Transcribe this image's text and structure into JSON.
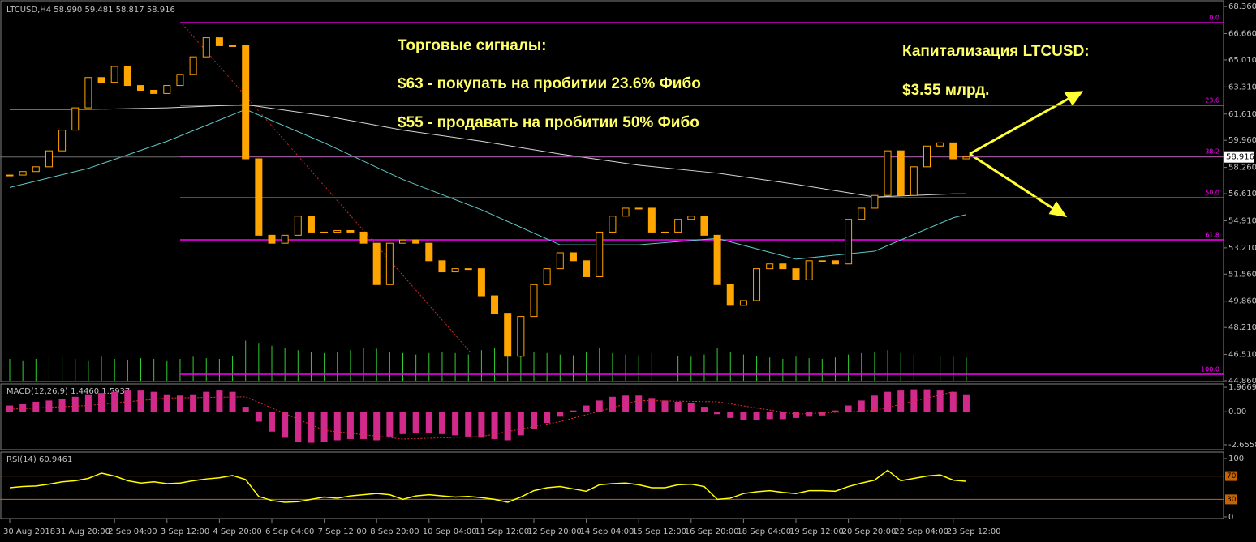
{
  "chart_data": {
    "type": "candlestick",
    "title": "LTCUSD,H4  58.990 59.481 58.817 58.916",
    "categories": [
      "30 Aug 2018",
      null,
      null,
      null,
      "31 Aug 20:00",
      null,
      null,
      null,
      "2 Sep 04:00",
      null,
      null,
      null,
      "3 Sep 12:00",
      null,
      null,
      null,
      "4 Sep 20:00",
      null,
      null,
      null,
      "6 Sep 04:00",
      null,
      null,
      null,
      "7 Sep 12:00",
      null,
      null,
      null,
      "8 Sep 20:00",
      null,
      null,
      null,
      "10 Sep 04:00",
      null,
      null,
      null,
      "11 Sep 12:00",
      null,
      null,
      null,
      "12 Sep 20:00",
      null,
      null,
      null,
      "14 Sep 04:00",
      null,
      null,
      null,
      "15 Sep 12:00",
      null,
      null,
      null,
      "16 Sep 20:00",
      null,
      null,
      null,
      "18 Sep 04:00",
      null,
      null,
      null,
      "19 Sep 12:00",
      null,
      null,
      null,
      "20 Sep 20:00",
      null,
      null,
      null,
      "22 Sep 04:00",
      null,
      null,
      null,
      "23 Sep 12:00",
      null
    ],
    "close": [
      57.78,
      58.0,
      58.3,
      59.3,
      60.6,
      62.0,
      63.9,
      63.6,
      64.6,
      63.4,
      63.1,
      62.9,
      63.4,
      64.1,
      65.2,
      66.4,
      65.9,
      65.9,
      58.8,
      54.0,
      53.5,
      54.0,
      55.2,
      54.2,
      54.2,
      54.3,
      54.2,
      53.5,
      50.9,
      53.5,
      53.7,
      53.5,
      52.4,
      51.7,
      51.9,
      51.9,
      50.2,
      49.1,
      46.4,
      48.9,
      50.9,
      51.9,
      52.9,
      52.4,
      51.4,
      54.2,
      55.2,
      55.7,
      55.7,
      54.2,
      54.2,
      55.0,
      55.2,
      54.0,
      50.9,
      49.6,
      49.9,
      51.9,
      52.2,
      51.9,
      51.2,
      52.4,
      52.4,
      52.2,
      55.0,
      55.7,
      56.5,
      59.3,
      56.5,
      58.3,
      59.6,
      59.8,
      58.8,
      58.916
    ],
    "candle_color": "#ffa500",
    "volume": [
      30,
      28,
      30,
      32,
      34,
      30,
      28,
      33,
      30,
      29,
      31,
      30,
      28,
      30,
      33,
      31,
      30,
      34,
      55,
      52,
      48,
      45,
      42,
      40,
      38,
      40,
      42,
      45,
      44,
      40,
      38,
      36,
      38,
      40,
      38,
      36,
      42,
      45,
      50,
      46,
      40,
      38,
      36,
      35,
      40,
      45,
      38,
      36,
      35,
      38,
      36,
      34,
      33,
      36,
      45,
      40,
      36,
      34,
      32,
      30,
      33,
      31,
      30,
      32,
      36,
      38,
      40,
      42,
      38,
      36,
      35,
      34,
      33,
      32
    ],
    "volume_color": "#32cd32",
    "ma_lines": [
      {
        "color": "#d8d8d8",
        "x": [
          0,
          6,
          12,
          18,
          24,
          30,
          36,
          42,
          48,
          54,
          60,
          66,
          72,
          73
        ],
        "values": [
          61.9,
          61.9,
          62.0,
          62.2,
          61.5,
          60.6,
          59.9,
          59.1,
          58.4,
          57.9,
          57.2,
          56.4,
          56.6,
          56.6
        ]
      },
      {
        "color": "#5fc8c8",
        "x": [
          0,
          6,
          12,
          18,
          24,
          30,
          36,
          42,
          48,
          54,
          60,
          66,
          72,
          73
        ],
        "values": [
          57.0,
          58.2,
          59.9,
          61.9,
          59.8,
          57.5,
          55.6,
          53.4,
          53.4,
          53.8,
          52.5,
          53.0,
          55.1,
          55.3
        ]
      }
    ],
    "ylim": [
      44.81,
      68.72
    ],
    "yticks": [
      {
        "value": 68.36,
        "label": "68.360"
      },
      {
        "value": 66.66,
        "label": "66.660"
      },
      {
        "value": 65.01,
        "label": "65.010"
      },
      {
        "value": 63.31,
        "label": "63.310"
      },
      {
        "value": 61.61,
        "label": "61.610"
      },
      {
        "value": 59.96,
        "label": "59.960"
      },
      {
        "value": 58.26,
        "label": "58.260"
      },
      {
        "value": 56.61,
        "label": "56.610"
      },
      {
        "value": 54.91,
        "label": "54.910"
      },
      {
        "value": 53.21,
        "label": "53.210"
      },
      {
        "value": 51.56,
        "label": "51.560"
      },
      {
        "value": 49.86,
        "label": "49.860"
      },
      {
        "value": 48.21,
        "label": "48.210"
      },
      {
        "value": 46.51,
        "label": "46.510"
      },
      {
        "value": 44.86,
        "label": "44.860"
      }
    ],
    "current_price": 58.916,
    "fib_color": "#ff00ff",
    "fib_levels": [
      {
        "level": "0.0",
        "price": 67.34
      },
      {
        "level": "23.6",
        "price": 62.15
      },
      {
        "level": "38.2",
        "price": 58.95
      },
      {
        "level": "50.0",
        "price": 56.36
      },
      {
        "level": "61.8",
        "price": 53.71
      },
      {
        "level": "100.0",
        "price": 45.27
      }
    ],
    "annotations": [
      "Торговые сигналы:",
      "$63 - покупать на пробитии 23.6% Фибо",
      "$55 - продавать на пробитии 50% Фибо",
      "Капитализация LTCUSD:",
      "$3.55 млрд."
    ],
    "macd": {
      "title": "MACD(12,26,9) 1.4460 1.5937",
      "color": "#d12a8a",
      "signal_color": "#e03030",
      "histogram": [
        0.5,
        0.6,
        0.8,
        0.9,
        1.0,
        1.2,
        1.4,
        1.5,
        1.6,
        1.7,
        1.7,
        1.6,
        1.4,
        1.3,
        1.4,
        1.6,
        1.7,
        1.6,
        0.4,
        -0.8,
        -1.6,
        -2.1,
        -2.4,
        -2.5,
        -2.4,
        -2.3,
        -2.2,
        -2.2,
        -2.3,
        -2.0,
        -1.8,
        -1.7,
        -1.7,
        -1.8,
        -1.9,
        -2.0,
        -2.1,
        -2.2,
        -2.3,
        -1.9,
        -1.4,
        -0.9,
        -0.4,
        0.1,
        0.5,
        0.9,
        1.2,
        1.3,
        1.3,
        1.1,
        0.9,
        0.8,
        0.7,
        0.4,
        -0.2,
        -0.5,
        -0.7,
        -0.7,
        -0.6,
        -0.6,
        -0.5,
        -0.4,
        -0.3,
        0.1,
        0.5,
        0.9,
        1.3,
        1.6,
        1.7,
        1.8,
        1.8,
        1.7,
        1.6,
        1.4
      ],
      "signal_x": [
        0,
        6,
        12,
        18,
        24,
        30,
        36,
        42,
        48,
        54,
        60,
        66,
        72
      ],
      "signal": [
        0.2,
        0.5,
        1.1,
        1.2,
        -1.5,
        -2.2,
        -2.0,
        -0.8,
        0.9,
        0.8,
        -0.2,
        0.1,
        1.6
      ],
      "ylim": [
        -3.05,
        2.23
      ],
      "yticks": [
        1.9669,
        {
          "value": 0,
          "label": "0.00"
        },
        -2.6558
      ]
    },
    "rsi": {
      "title": "RSI(14) 60.9461",
      "color": "#ffff00",
      "level_color": "#c86400",
      "values": [
        50,
        52,
        53,
        56,
        60,
        62,
        66,
        75,
        70,
        62,
        58,
        60,
        57,
        58,
        62,
        65,
        67,
        71,
        64,
        35,
        28,
        25,
        26,
        30,
        34,
        32,
        36,
        38,
        40,
        38,
        30,
        36,
        38,
        36,
        34,
        35,
        33,
        30,
        25,
        34,
        45,
        50,
        52,
        48,
        44,
        55,
        57,
        58,
        55,
        50,
        50,
        55,
        56,
        52,
        30,
        32,
        40,
        43,
        45,
        42,
        40,
        45,
        45,
        44,
        52,
        58,
        63,
        80,
        62,
        66,
        70,
        72,
        63,
        61
      ],
      "levels": [
        70,
        30
      ],
      "ylim": [
        -2.8,
        111.1
      ],
      "yticks": [
        100,
        0
      ]
    }
  }
}
